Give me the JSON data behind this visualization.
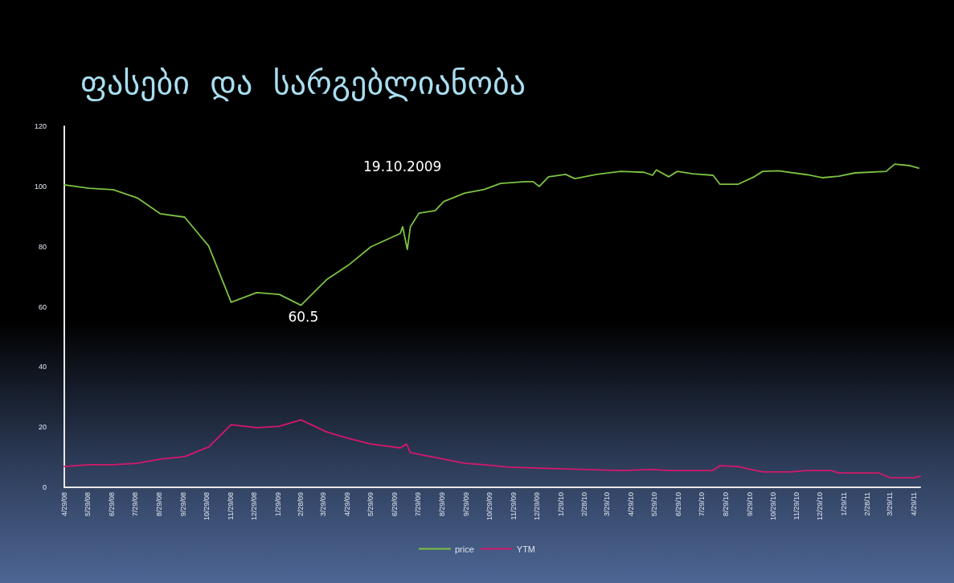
{
  "chart_data": {
    "type": "line",
    "title": "ფასები  და  სარგებლიანობა",
    "annotations": [
      "19.10.2009",
      {
        "text": "60.5",
        "x": "2009-02-28",
        "y": 60.5
      }
    ],
    "xlim": [
      "2008-04-29",
      "2011-05-07"
    ],
    "xticks": [
      {
        "value": "2008-04-29",
        "label": "4/29/08"
      },
      {
        "value": "2008-05-29",
        "label": "5/29/08"
      },
      {
        "value": "2008-06-29",
        "label": "6/29/08"
      },
      {
        "value": "2008-07-29",
        "label": "7/29/08"
      },
      {
        "value": "2008-08-29",
        "label": "8/29/08"
      },
      {
        "value": "2008-09-29",
        "label": "9/29/08"
      },
      {
        "value": "2008-10-29",
        "label": "10/29/08"
      },
      {
        "value": "2008-11-29",
        "label": "11/29/08"
      },
      {
        "value": "2008-12-29",
        "label": "12/29/08"
      },
      {
        "value": "2009-01-29",
        "label": "1/29/09"
      },
      {
        "value": "2009-02-28",
        "label": "2/28/09"
      },
      {
        "value": "2009-03-29",
        "label": "3/29/09"
      },
      {
        "value": "2009-04-29",
        "label": "4/29/09"
      },
      {
        "value": "2009-05-29",
        "label": "5/29/09"
      },
      {
        "value": "2009-06-29",
        "label": "6/29/09"
      },
      {
        "value": "2009-07-29",
        "label": "7/29/09"
      },
      {
        "value": "2009-08-29",
        "label": "8/29/09"
      },
      {
        "value": "2009-09-29",
        "label": "9/29/09"
      },
      {
        "value": "2009-10-29",
        "label": "10/29/09"
      },
      {
        "value": "2009-11-29",
        "label": "11/29/09"
      },
      {
        "value": "2009-12-29",
        "label": "12/29/09"
      },
      {
        "value": "2010-01-29",
        "label": "1/29/10"
      },
      {
        "value": "2010-02-28",
        "label": "2/28/10"
      },
      {
        "value": "2010-03-29",
        "label": "3/29/10"
      },
      {
        "value": "2010-04-29",
        "label": "4/29/10"
      },
      {
        "value": "2010-05-29",
        "label": "5/29/10"
      },
      {
        "value": "2010-06-29",
        "label": "6/29/10"
      },
      {
        "value": "2010-07-29",
        "label": "7/29/10"
      },
      {
        "value": "2010-08-29",
        "label": "8/29/10"
      },
      {
        "value": "2010-09-29",
        "label": "9/29/10"
      },
      {
        "value": "2010-10-29",
        "label": "10/29/10"
      },
      {
        "value": "2010-11-29",
        "label": "11/29/10"
      },
      {
        "value": "2010-12-29",
        "label": "12/29/10"
      },
      {
        "value": "2011-01-29",
        "label": "1/29/11"
      },
      {
        "value": "2011-02-28",
        "label": "2/28/11"
      },
      {
        "value": "2011-03-29",
        "label": "3/29/11"
      },
      {
        "value": "2011-04-29",
        "label": "4/29/11"
      }
    ],
    "ylim": [
      0,
      120
    ],
    "yticks": [
      0,
      20,
      40,
      60,
      80,
      100,
      120
    ],
    "grid": false,
    "legend": "bottom",
    "marker": "none",
    "line_style": "solid",
    "series": [
      {
        "name": "price",
        "color": "#7cc242",
        "x": [
          "2008-04-29",
          "2008-05-31",
          "2008-07-01",
          "2008-08-01",
          "2008-08-31",
          "2008-10-01",
          "2008-11-01",
          "2008-11-30",
          "2009-01-02",
          "2009-01-31",
          "2009-02-28",
          "2009-04-02",
          "2009-04-30",
          "2009-05-29",
          "2009-07-06",
          "2009-07-09",
          "2009-07-15",
          "2009-07-19",
          "2009-07-30",
          "2009-08-20",
          "2009-08-31",
          "2009-09-27",
          "2009-10-22",
          "2009-11-12",
          "2009-12-14",
          "2009-12-24",
          "2010-01-01",
          "2010-01-13",
          "2010-02-04",
          "2010-02-16",
          "2010-03-16",
          "2010-04-16",
          "2010-05-16",
          "2010-05-27",
          "2010-06-01",
          "2010-06-17",
          "2010-06-28",
          "2010-07-18",
          "2010-08-13",
          "2010-08-22",
          "2010-09-14",
          "2010-10-05",
          "2010-10-16",
          "2010-11-05",
          "2010-12-12",
          "2011-01-01",
          "2011-01-22",
          "2011-02-12",
          "2011-03-24",
          "2011-04-04",
          "2011-04-24",
          "2011-05-05"
        ],
        "values": [
          100.5,
          99.4,
          98.9,
          96.2,
          90.9,
          89.8,
          80.2,
          61.5,
          64.7,
          64.1,
          60.5,
          69,
          73.8,
          79.9,
          84.4,
          86.6,
          79.1,
          86.6,
          91.1,
          92,
          95,
          97.8,
          99,
          101,
          101.6,
          101.6,
          100,
          103.2,
          104,
          102.6,
          104,
          105,
          104.7,
          103.7,
          105.5,
          103.2,
          105,
          104.2,
          103.7,
          100.7,
          100.7,
          103.2,
          105,
          105.2,
          103.9,
          102.9,
          103.4,
          104.5,
          105,
          107.4,
          106.9,
          106.1
        ]
      },
      {
        "name": "YTM",
        "color": "#d4186c",
        "x": [
          "2008-04-29",
          "2008-05-31",
          "2008-07-01",
          "2008-08-01",
          "2008-08-31",
          "2008-10-01",
          "2008-11-01",
          "2008-11-30",
          "2009-01-02",
          "2009-01-31",
          "2009-02-28",
          "2009-04-02",
          "2009-04-30",
          "2009-05-29",
          "2009-07-06",
          "2009-07-14",
          "2009-07-19",
          "2009-08-20",
          "2009-09-27",
          "2009-10-22",
          "2009-11-22",
          "2010-01-01",
          "2010-02-04",
          "2010-04-16",
          "2010-05-27",
          "2010-06-17",
          "2010-08-13",
          "2010-08-22",
          "2010-09-14",
          "2010-10-16",
          "2010-11-21",
          "2010-12-12",
          "2011-01-12",
          "2011-01-22",
          "2011-03-14",
          "2011-03-29",
          "2011-04-30",
          "2011-05-07"
        ],
        "values": [
          6.9,
          7.5,
          7.5,
          8,
          9.4,
          10.2,
          13.4,
          20.8,
          19.8,
          20.3,
          22.4,
          18.4,
          16.3,
          14.4,
          13.1,
          14.4,
          11.5,
          9.9,
          8,
          7.5,
          6.7,
          6.4,
          6.1,
          5.6,
          5.9,
          5.6,
          5.6,
          7.2,
          6.9,
          5.1,
          5.1,
          5.6,
          5.6,
          4.8,
          4.8,
          3.2,
          3.2,
          3.7
        ]
      }
    ]
  }
}
